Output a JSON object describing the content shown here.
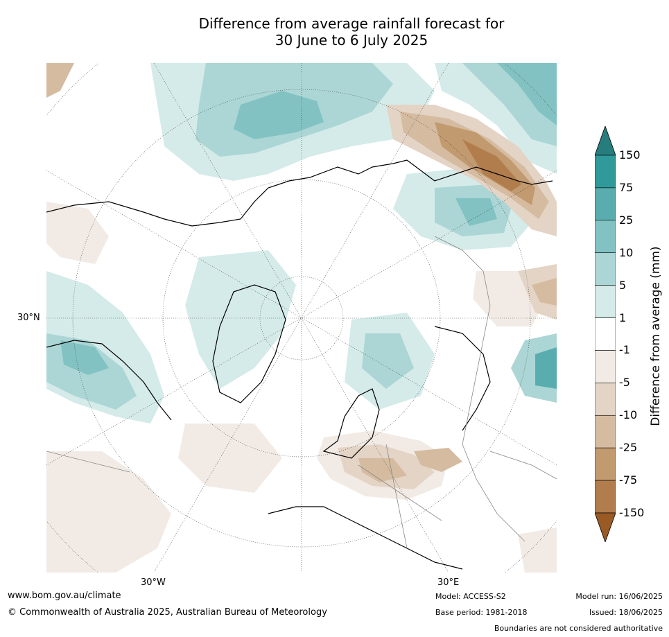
{
  "title_line1": "Difference from average rainfall forecast for",
  "title_line2": "30 June to 6 July 2025",
  "map": {
    "projection": "north polar stereographic",
    "lat_labels": [
      "30°N"
    ],
    "lon_labels": [
      "30°W",
      "30°E"
    ]
  },
  "colorbar": {
    "title": "Difference from average (mm)",
    "tick_labels": [
      "150",
      "75",
      "25",
      "10",
      "5",
      "1",
      "-1",
      "-5",
      "-10",
      "-25",
      "-75",
      "-150"
    ],
    "colors": [
      "#277d7d",
      "#30999a",
      "#5aadae",
      "#82c2c2",
      "#abd6d5",
      "#d4ebe9",
      "#ffffff",
      "#f2ebe5",
      "#e4d4c6",
      "#d5bca1",
      "#c19a70",
      "#b27d4c",
      "#9a5a23"
    ]
  },
  "footer": {
    "website": "www.bom.gov.au/climate",
    "copyright": "© Commonwealth of Australia 2025, Australian Bureau of Meteorology",
    "model": "Model: ACCESS-S2",
    "base_period": "Base period: 1981-2018",
    "model_run": "Model run: 16/06/2025",
    "issued": "Issued: 18/06/2025",
    "disclaimer": "Boundaries are not considered authoritative"
  }
}
